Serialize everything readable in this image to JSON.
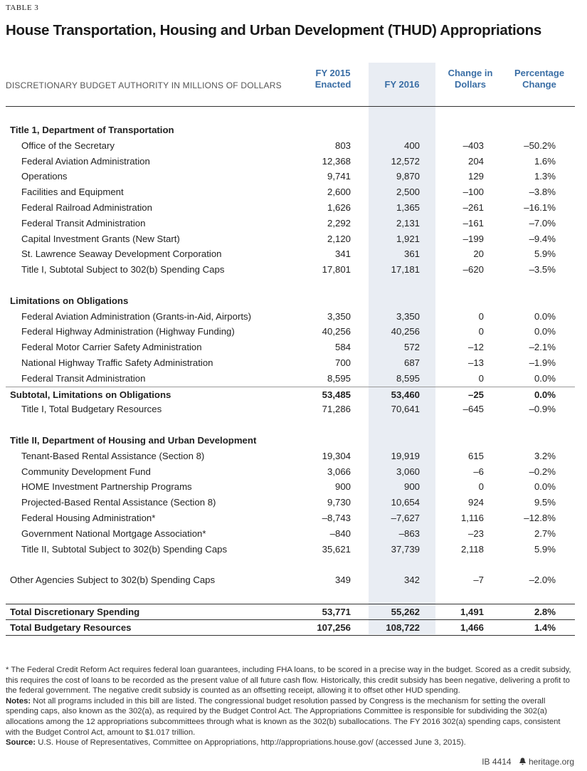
{
  "header": {
    "label": "TABLE 3",
    "title": "House Transportation, Housing and Urban Development (THUD) Appropriations"
  },
  "table": {
    "columns": [
      "DISCRETIONARY BUDGET AUTHORITY IN MILLIONS OF DOLLARS",
      "FY 2015 Enacted",
      "FY 2016",
      "Change in Dollars",
      "Percentage Change"
    ],
    "rows": [
      [
        "Title 1, Department of Transportation"
      ],
      [
        "Office of the Secretary",
        "803",
        "400",
        "–403",
        "–50.2%"
      ],
      [
        "Federal Aviation Administration",
        "12,368",
        "12,572",
        "204",
        "1.6%"
      ],
      [
        "Operations",
        "9,741",
        "9,870",
        "129",
        "1.3%"
      ],
      [
        "Facilities and Equipment",
        "2,600",
        "2,500",
        "–100",
        "–3.8%"
      ],
      [
        "Federal Railroad Administration",
        "1,626",
        "1,365",
        "–261",
        "–16.1%"
      ],
      [
        "Federal Transit Administration",
        "2,292",
        "2,131",
        "–161",
        "–7.0%"
      ],
      [
        "Capital Investment Grants (New Start)",
        "2,120",
        "1,921",
        "–199",
        "–9.4%"
      ],
      [
        "St. Lawrence Seaway Development Corporation",
        "341",
        "361",
        "20",
        "5.9%"
      ],
      [
        "Title I, Subtotal Subject to 302(b) Spending Caps",
        "17,801",
        "17,181",
        "–620",
        "–3.5%"
      ],
      [
        "Limitations on Obligations"
      ],
      [
        "Federal Aviation Administration (Grants-in-Aid, Airports)",
        "3,350",
        "3,350",
        "0",
        "0.0%"
      ],
      [
        "Federal Highway Administration (Highway Funding)",
        "40,256",
        "40,256",
        "0",
        "0.0%"
      ],
      [
        "Federal Motor Carrier Safety Administration",
        "584",
        "572",
        "–12",
        "–2.1%"
      ],
      [
        "National Highway Traffic Safety Administration",
        "700",
        "687",
        "–13",
        "–1.9%"
      ],
      [
        "Federal Transit Administration",
        "8,595",
        "8,595",
        "0",
        "0.0%"
      ],
      [
        "Subtotal, Limitations on Obligations",
        "53,485",
        "53,460",
        "–25",
        "0.0%"
      ],
      [
        "Title I, Total Budgetary Resources",
        "71,286",
        "70,641",
        "–645",
        "–0.9%"
      ],
      [
        "Title II, Department of Housing and Urban Development"
      ],
      [
        "Tenant-Based Rental Assistance (Section 8)",
        "19,304",
        "19,919",
        "615",
        "3.2%"
      ],
      [
        "Community Development Fund",
        "3,066",
        "3,060",
        "–6",
        "–0.2%"
      ],
      [
        "HOME Investment Partnership Programs",
        "900",
        "900",
        "0",
        "0.0%"
      ],
      [
        "Projected-Based Rental Assistance (Section 8)",
        "9,730",
        "10,654",
        "924",
        "9.5%"
      ],
      [
        "Federal Housing Administration*",
        "–8,743",
        "–7,627",
        "1,116",
        "–12.8%"
      ],
      [
        "Government National Mortgage Association*",
        "–840",
        "–863",
        "–23",
        "2.7%"
      ],
      [
        "Title II, Subtotal Subject to 302(b) Spending Caps",
        "35,621",
        "37,739",
        "2,118",
        "5.9%"
      ],
      [
        "Other Agencies Subject to 302(b) Spending Caps",
        "349",
        "342",
        "–7",
        "–2.0%"
      ],
      [
        "Total Discretionary Spending",
        "53,771",
        "55,262",
        "1,491",
        "2.8%"
      ],
      [
        "Total Budgetary Resources",
        "107,256",
        "108,722",
        "1,466",
        "1.4%"
      ]
    ]
  },
  "notes": [
    {
      "text": "* The Federal Credit Reform Act requires federal loan guarantees, including FHA loans, to be scored in a precise way in the budget. Scored as a credit subsidy, this requires the cost of loans to be recorded as the present value of all future cash flow. Historically, this credit subsidy has been negative, delivering a profit to the federal government. The negative credit subsidy is counted as an offsetting receipt, allowing it to offset other HUD spending."
    },
    {
      "label": "Notes:",
      "text": "Not all programs included in this bill are listed. The congressional budget resolution passed by Congress is the mechanism for setting the overall spending caps, also known as the 302(a), as required by the Budget Control Act. The Appropriations Committee is responsible for subdividing the 302(a) allocations among the 12 appropriations subcommittees through what is known as the 302(b) suballocations. The FY 2016 302(a) spending caps, consistent with the Budget Control Act, amount to $1.017 trillion."
    },
    {
      "label": "Source:",
      "text": "U.S. House of Representatives, Committee on Appropriations, http://appropriations.house.gov/ (accessed June 3, 2015)."
    }
  ],
  "footer": {
    "id": "IB 4414",
    "site": "heritage.org"
  }
}
